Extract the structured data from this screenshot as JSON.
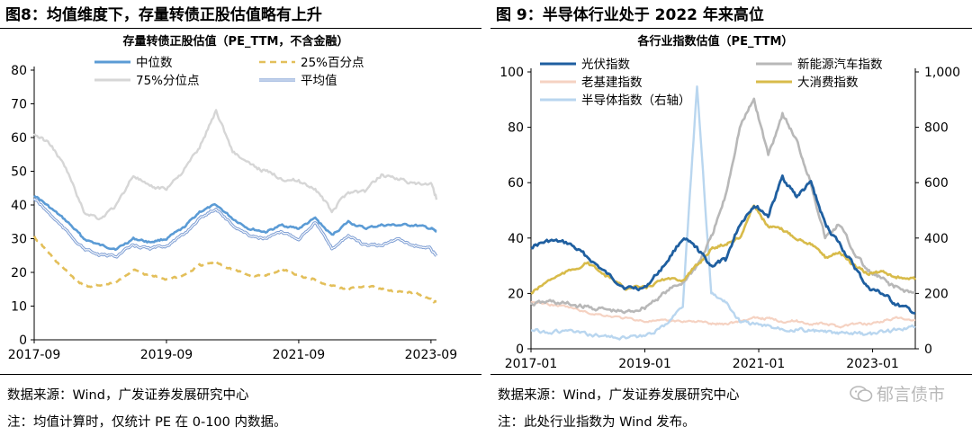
{
  "left": {
    "figure_title": "图8：均值维度下，存量转债正股估值略有上升",
    "source": "数据来源：Wind，广发证券发展研究中心",
    "note": "注：均值计算时，仅统计 PE 在 0-100 内数据。"
  },
  "right": {
    "figure_title": "图 9：半导体行业处于 2022 年来高位",
    "source": "数据来源：Wind，广发证券发展研究中心",
    "note": "注：此处行业指数为 Wind 发布。",
    "watermark": "郁言债市"
  },
  "colors": {
    "median": "#5b9bd5",
    "p25": "#e3bf5a",
    "p75": "#d6d6d6",
    "mean": "#7f9fd4",
    "pv": "#1f5fa0",
    "nev": "#b8b8b8",
    "infra": "#f5d2c2",
    "consumer": "#d8bb4a",
    "semi": "#b9d6ef"
  },
  "chart_data": [
    {
      "type": "line",
      "title": "存量转债正股估值（PE_TTM，不含金融）",
      "xlabel": "",
      "ylabel": "",
      "x_ticks": [
        "2017-09",
        "2019-09",
        "2021-09",
        "2023-09"
      ],
      "x_range": [
        "2017-09",
        "2023-10"
      ],
      "ylim": [
        0,
        80
      ],
      "y_ticks": [
        0,
        10,
        20,
        30,
        40,
        50,
        60,
        70,
        80
      ],
      "legend_position": "top",
      "grid": false,
      "x": [
        "2017-09",
        "2017-12",
        "2018-03",
        "2018-06",
        "2018-09",
        "2018-12",
        "2019-03",
        "2019-06",
        "2019-09",
        "2019-12",
        "2020-03",
        "2020-06",
        "2020-09",
        "2020-12",
        "2021-03",
        "2021-06",
        "2021-09",
        "2021-12",
        "2022-03",
        "2022-06",
        "2022-09",
        "2022-12",
        "2023-03",
        "2023-06",
        "2023-09",
        "2023-10"
      ],
      "series": [
        {
          "name": "中位数",
          "color_key": "median",
          "style": "solid",
          "values": [
            43,
            39,
            35,
            30,
            28,
            27,
            30,
            29,
            30,
            33,
            38,
            40,
            36,
            33,
            32,
            34,
            33,
            36,
            31,
            35,
            33,
            34,
            34,
            34,
            33,
            32
          ]
        },
        {
          "name": "25%百分点",
          "color_key": "p25",
          "style": "dashed",
          "values": [
            30.5,
            25,
            20,
            16,
            16,
            17,
            21,
            19,
            18,
            19,
            22,
            23,
            21,
            19,
            19,
            21,
            19,
            18,
            16,
            15,
            16,
            15,
            14,
            14,
            12,
            11
          ]
        },
        {
          "name": "75%分位点",
          "color_key": "p75",
          "style": "solid",
          "values": [
            61,
            58,
            50,
            38,
            36,
            40,
            49,
            45,
            45,
            50,
            57,
            68,
            56,
            52,
            50,
            48,
            47,
            45,
            38,
            44,
            44,
            49,
            48,
            46,
            46,
            42
          ]
        },
        {
          "name": "平均值",
          "color_key": "mean",
          "style": "double",
          "values": [
            42,
            37,
            32,
            27,
            25,
            25,
            28,
            27,
            28,
            31,
            36,
            39,
            34,
            31,
            30,
            32,
            30,
            35,
            27,
            31,
            28,
            28,
            30,
            28,
            27,
            25
          ]
        }
      ]
    },
    {
      "type": "line",
      "title": "各行业指数估值（PE_TTM）",
      "xlabel": "",
      "ylabel": "",
      "x_ticks": [
        "2017-01",
        "2019-01",
        "2021-01",
        "2023-01"
      ],
      "x_range": [
        "2017-01",
        "2023-10"
      ],
      "ylim": [
        0,
        100
      ],
      "y_ticks": [
        0,
        20,
        40,
        60,
        80,
        100
      ],
      "y2lim": [
        0,
        1000
      ],
      "y2_ticks": [
        "0",
        "200",
        "400",
        "600",
        "800",
        "1,000"
      ],
      "legend_position": "top",
      "grid": false,
      "x": [
        "2017-01",
        "2017-05",
        "2017-09",
        "2018-01",
        "2018-05",
        "2018-09",
        "2019-01",
        "2019-05",
        "2019-09",
        "2019-12",
        "2020-03",
        "2020-06",
        "2020-09",
        "2020-12",
        "2021-03",
        "2021-06",
        "2021-09",
        "2021-12",
        "2022-03",
        "2022-06",
        "2022-09",
        "2022-12",
        "2023-03",
        "2023-06",
        "2023-10"
      ],
      "series": [
        {
          "name": "光伏指数",
          "color_key": "pv",
          "axis": "left",
          "values": [
            37,
            39,
            38,
            33,
            27,
            22,
            22,
            30,
            40,
            36,
            30,
            32,
            45,
            52,
            48,
            62,
            55,
            60,
            45,
            38,
            30,
            22,
            20,
            16,
            13
          ]
        },
        {
          "name": "新能源汽车指数",
          "color_key": "nev",
          "axis": "left",
          "values": [
            16,
            17,
            16,
            15,
            14,
            13,
            15,
            20,
            24,
            30,
            40,
            55,
            80,
            90,
            70,
            85,
            75,
            60,
            40,
            45,
            35,
            28,
            25,
            22,
            20
          ]
        },
        {
          "name": "老基建指数",
          "color_key": "infra",
          "axis": "left",
          "values": [
            17,
            16,
            15,
            13,
            12,
            11,
            10,
            10,
            10,
            10,
            9,
            9,
            10,
            11,
            11,
            10,
            10,
            9,
            9,
            8,
            9,
            9,
            10,
            11,
            10
          ]
        },
        {
          "name": "大消费指数",
          "color_key": "consumer",
          "axis": "left",
          "values": [
            20,
            25,
            28,
            31,
            26,
            22,
            22,
            25,
            25,
            30,
            36,
            38,
            40,
            52,
            44,
            43,
            40,
            38,
            33,
            35,
            30,
            27,
            28,
            26,
            25
          ]
        },
        {
          "name": "半导体指数（右轴）",
          "color_key": "semi",
          "axis": "right",
          "values": [
            70,
            60,
            65,
            50,
            45,
            40,
            45,
            80,
            160,
            950,
            200,
            170,
            100,
            90,
            80,
            75,
            70,
            65,
            60,
            55,
            55,
            50,
            60,
            70,
            80
          ]
        }
      ]
    }
  ]
}
